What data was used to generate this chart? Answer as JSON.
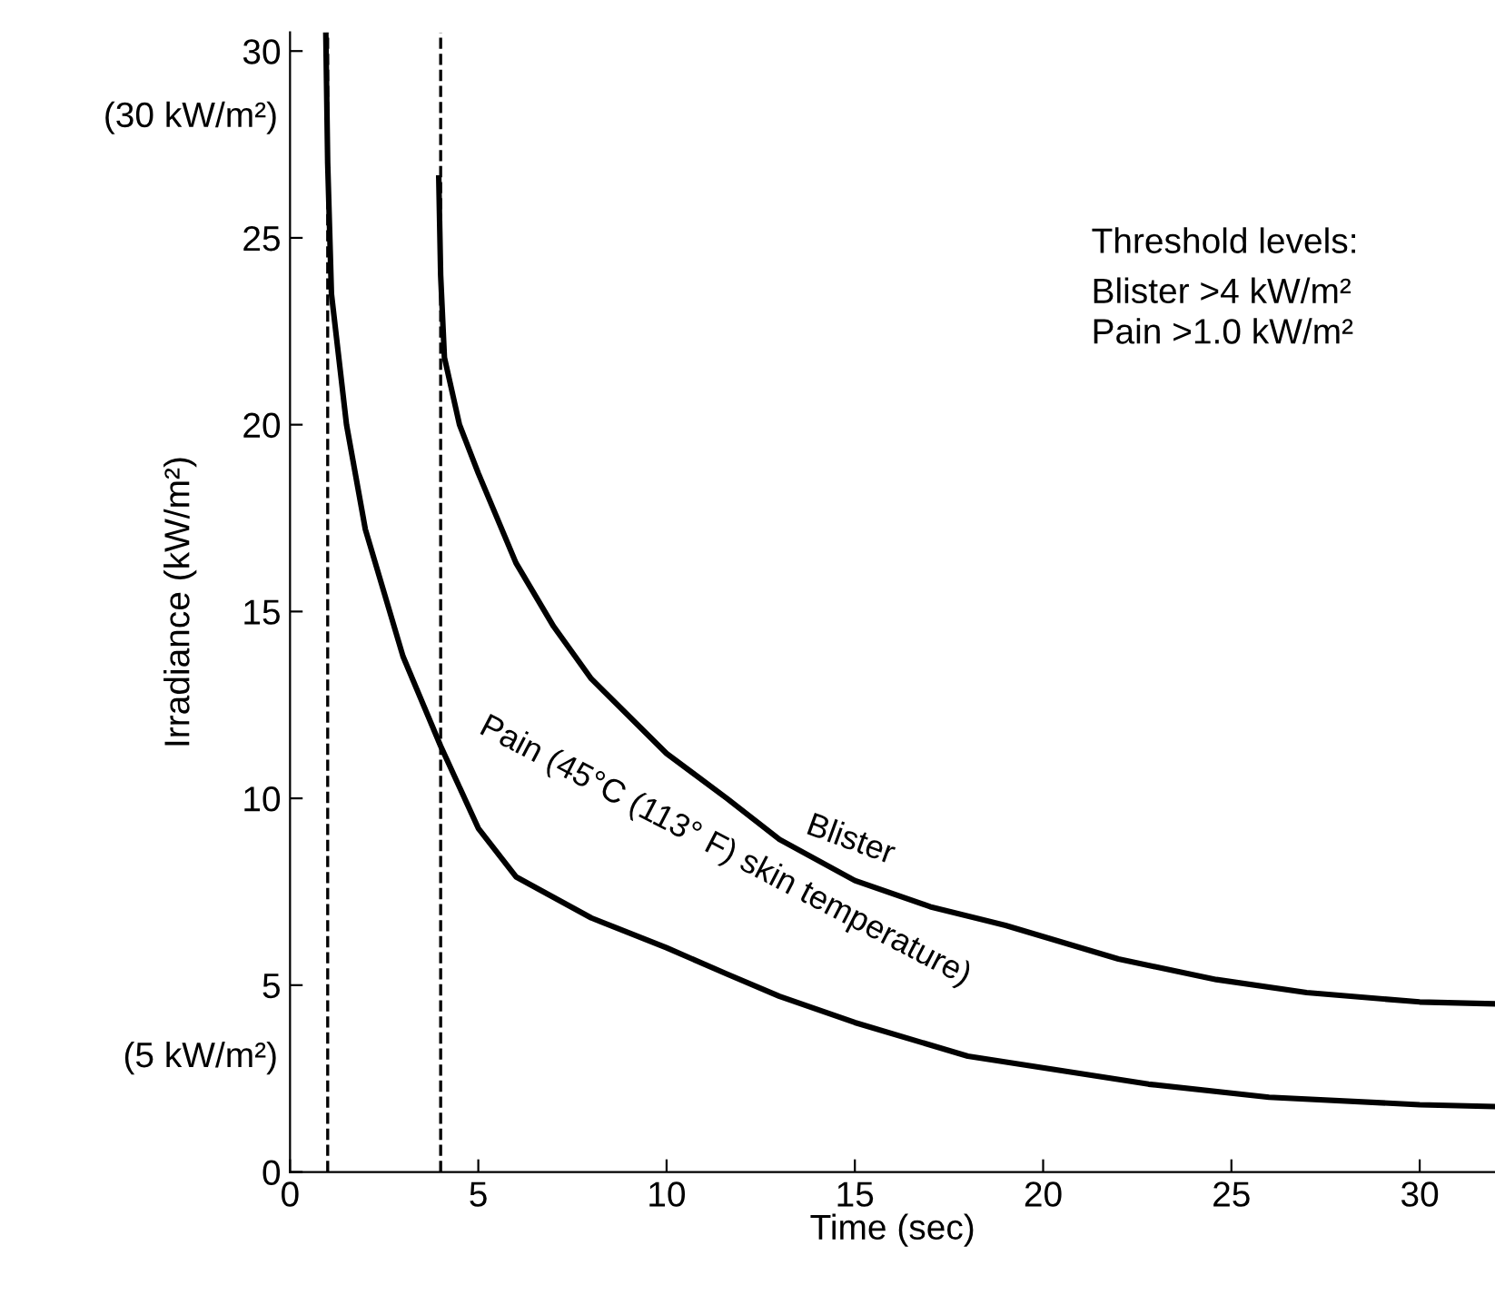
{
  "chart_data": {
    "type": "line",
    "xlabel": "Time (sec)",
    "ylabel": "Irradiance (kW/m²)",
    "xlim": [
      0,
      32
    ],
    "ylim": [
      0,
      30.5
    ],
    "xticks": [
      0,
      5,
      10,
      15,
      20,
      25,
      30
    ],
    "yticks": [
      0,
      5,
      10,
      15,
      20,
      25,
      30
    ],
    "grid": false,
    "legend": false,
    "marker": "none",
    "line_style": "solid",
    "series": [
      {
        "name": "Pain (45°C (113° F) skin temperature)",
        "color": "#000000",
        "x": [
          0.95,
          1.0,
          1.1,
          1.5,
          2,
          3,
          4,
          5,
          6,
          8,
          10,
          11.6,
          13,
          15,
          18,
          22.8,
          26,
          30,
          32
        ],
        "values": [
          30.5,
          27,
          23.5,
          20,
          17.2,
          13.8,
          11.4,
          9.2,
          7.9,
          6.8,
          6.0,
          5.3,
          4.7,
          4.0,
          3.1,
          2.35,
          2.0,
          1.8,
          1.75
        ]
      },
      {
        "name": "Blister",
        "color": "#000000",
        "x": [
          3.95,
          4.0,
          4.1,
          4.5,
          5,
          6,
          7,
          8,
          10,
          11.6,
          13,
          15,
          17,
          19,
          22,
          24.6,
          27,
          30,
          32
        ],
        "values": [
          26.6,
          24,
          21.8,
          20,
          18.7,
          16.3,
          14.6,
          13.2,
          11.2,
          10.0,
          8.9,
          7.8,
          7.1,
          6.6,
          5.7,
          5.15,
          4.8,
          4.55,
          4.5
        ]
      }
    ],
    "ref_lines": [
      {
        "axis": "x",
        "value": 1,
        "color": "#000000",
        "line_style": "dashed"
      },
      {
        "axis": "x",
        "value": 4,
        "color": "#000000",
        "line_style": "dashed"
      }
    ],
    "annotations": [
      "(30 kW/m²)",
      "(5 kW/m²)",
      "Threshold levels:",
      "Blister >4 kW/m²\nPain >1.0 kW/m²"
    ]
  }
}
